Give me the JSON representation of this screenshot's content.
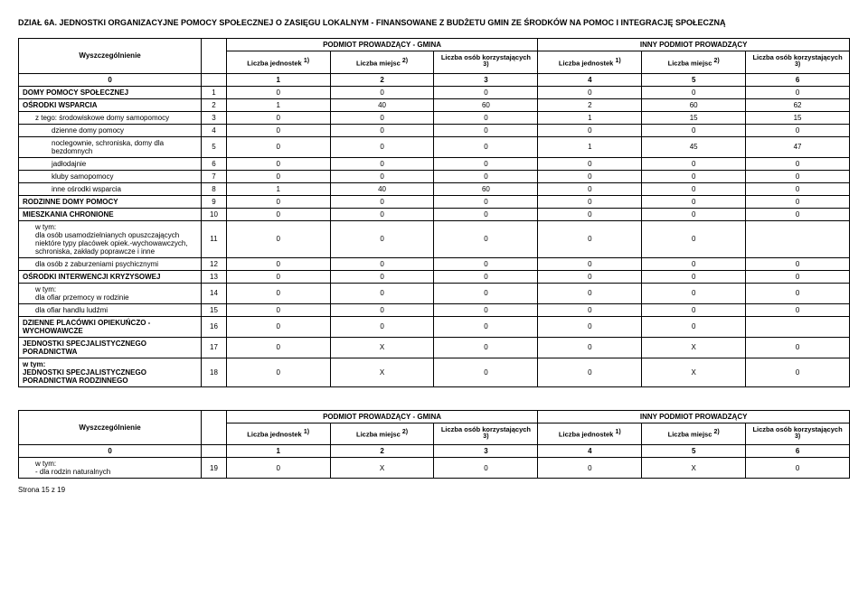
{
  "section_title": "DZIAŁ 6A. JEDNOSTKI ORGANIZACYJNE POMOCY SPOŁECZNEJ O ZASIĘGU LOKALNYM - FINANSOWANE Z BUDŻETU GMIN ZE ŚRODKÓW NA POMOC I INTEGRACJĘ SPOŁECZNĄ",
  "headers": {
    "wysz": "Wyszczególnienie",
    "gmina": "PODMIOT PROWADZĄCY - GMINA",
    "inny": "INNY PODMIOT PROWADZĄCY",
    "jednostek": "Liczba jednostek",
    "miejsc": "Liczba miejsc",
    "osob": "Liczba osób korzystających",
    "sup1": "1)",
    "sup2": "2)",
    "sup3": "3)"
  },
  "col_index": [
    "0",
    "1",
    "2",
    "3",
    "4",
    "5",
    "6"
  ],
  "rows": [
    {
      "label": "DOMY POMOCY SPOŁECZNEJ",
      "n": "1",
      "cls": "row-label",
      "c": [
        "0",
        "0",
        "0",
        "0",
        "0",
        "0"
      ]
    },
    {
      "label": "OŚRODKI WSPARCIA",
      "n": "2",
      "cls": "row-label",
      "c": [
        "1",
        "40",
        "60",
        "2",
        "60",
        "62"
      ]
    },
    {
      "label": "z tego:    środowiskowe domy samopomocy",
      "n": "3",
      "cls": "row-label-indent",
      "c": [
        "0",
        "0",
        "0",
        "1",
        "15",
        "15"
      ]
    },
    {
      "label": "dzienne domy pomocy",
      "n": "4",
      "cls": "row-label-indent2",
      "c": [
        "0",
        "0",
        "0",
        "0",
        "0",
        "0"
      ]
    },
    {
      "label": "noclegownie, schroniska, domy dla bezdomnych",
      "n": "5",
      "cls": "row-label-indent2",
      "c": [
        "0",
        "0",
        "0",
        "1",
        "45",
        "47"
      ]
    },
    {
      "label": "jadłodajnie",
      "n": "6",
      "cls": "row-label-indent2",
      "c": [
        "0",
        "0",
        "0",
        "0",
        "0",
        "0"
      ]
    },
    {
      "label": "kluby samopomocy",
      "n": "7",
      "cls": "row-label-indent2",
      "c": [
        "0",
        "0",
        "0",
        "0",
        "0",
        "0"
      ]
    },
    {
      "label": "inne ośrodki wsparcia",
      "n": "8",
      "cls": "row-label-indent2",
      "c": [
        "1",
        "40",
        "60",
        "0",
        "0",
        "0"
      ]
    },
    {
      "label": "RODZINNE DOMY POMOCY",
      "n": "9",
      "cls": "row-label",
      "c": [
        "0",
        "0",
        "0",
        "0",
        "0",
        "0"
      ]
    },
    {
      "label": "MIESZKANIA CHRONIONE",
      "n": "10",
      "cls": "row-label",
      "c": [
        "0",
        "0",
        "0",
        "0",
        "0",
        "0"
      ]
    },
    {
      "label": "w tym:\ndla osób usamodzielnianych opuszczających niektóre typy placówek opiek.-wychowawczych, schroniska, zakłady poprawcze i inne",
      "n": "11",
      "cls": "row-label-indent",
      "c": [
        "0",
        "0",
        "0",
        "0",
        "0",
        ""
      ]
    },
    {
      "label": "dla osób z zaburzeniami psychicznymi",
      "n": "12",
      "cls": "row-label-indent",
      "c": [
        "0",
        "0",
        "0",
        "0",
        "0",
        "0"
      ]
    },
    {
      "label": "OŚRODKI INTERWENCJI KRYZYSOWEJ",
      "n": "13",
      "cls": "row-label",
      "c": [
        "0",
        "0",
        "0",
        "0",
        "0",
        "0"
      ]
    },
    {
      "label": "w tym:\n    dla ofiar przemocy w rodzinie",
      "n": "14",
      "cls": "row-label-indent",
      "c": [
        "0",
        "0",
        "0",
        "0",
        "0",
        "0"
      ]
    },
    {
      "label": "dla ofiar handlu ludźmi",
      "n": "15",
      "cls": "row-label-indent",
      "c": [
        "0",
        "0",
        "0",
        "0",
        "0",
        "0"
      ]
    },
    {
      "label": "DZIENNE PLACÓWKI OPIEKUŃCZO - WYCHOWAWCZE",
      "n": "16",
      "cls": "row-label",
      "c": [
        "0",
        "0",
        "0",
        "0",
        "0",
        ""
      ]
    },
    {
      "label": "JEDNOSTKI SPECJALISTYCZNEGO PORADNICTWA",
      "n": "17",
      "cls": "row-label",
      "c": [
        "0",
        "X",
        "0",
        "0",
        "X",
        "0"
      ]
    },
    {
      "label": "w tym:\nJEDNOSTKI SPECJALISTYCZNEGO PORADNICTWA RODZINNEGO",
      "n": "18",
      "cls": "row-label",
      "c": [
        "0",
        "X",
        "0",
        "0",
        "X",
        "0"
      ]
    }
  ],
  "rows2": [
    {
      "label": "w tym:\n   - dla rodzin naturalnych",
      "n": "19",
      "cls": "row-label-indent",
      "c": [
        "0",
        "X",
        "0",
        "0",
        "X",
        "0"
      ]
    }
  ],
  "footer": "Strona 15 z 19"
}
